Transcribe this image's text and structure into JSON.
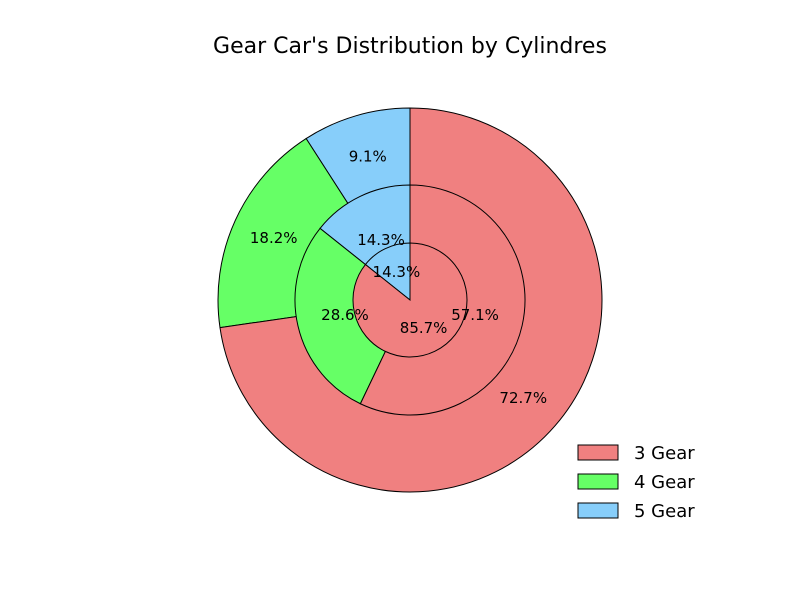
{
  "chart_data": {
    "type": "pie",
    "subtype": "nested-donut",
    "title": "Gear Car's Distribution by Cylindres",
    "legend": {
      "placement": "bottom-right",
      "entries": [
        {
          "label": "3 Gear",
          "color": "#f08080"
        },
        {
          "label": "4 Gear",
          "color": "#66ff66"
        },
        {
          "label": "5 Gear",
          "color": "#87cefa"
        }
      ]
    },
    "rings": [
      {
        "name": "outer",
        "slices": [
          {
            "label": "5 Gear",
            "value": 9.1,
            "text": "9.1%",
            "color": "#87cefa"
          },
          {
            "label": "4 Gear",
            "value": 18.2,
            "text": "18.2%",
            "color": "#66ff66"
          },
          {
            "label": "3 Gear",
            "value": 72.7,
            "text": "72.7%",
            "color": "#f08080"
          }
        ]
      },
      {
        "name": "middle",
        "slices": [
          {
            "label": "5 Gear",
            "value": 14.3,
            "text": "14.3%",
            "color": "#87cefa"
          },
          {
            "label": "4 Gear",
            "value": 28.6,
            "text": "28.6%",
            "color": "#66ff66"
          },
          {
            "label": "3 Gear",
            "value": 57.1,
            "text": "57.1%",
            "color": "#f08080"
          }
        ]
      },
      {
        "name": "inner",
        "slices": [
          {
            "label": "5 Gear",
            "value": 14.3,
            "text": "14.3%",
            "color": "#87cefa"
          },
          {
            "label": "3 Gear",
            "value": 85.7,
            "text": "85.7%",
            "color": "#f08080"
          }
        ]
      }
    ]
  }
}
